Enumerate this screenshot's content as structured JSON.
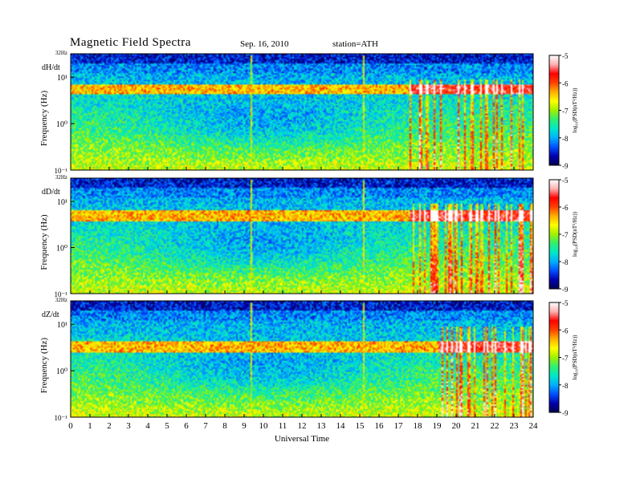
{
  "header": {
    "title": "Magnetic  Field  Spectra",
    "date": "Sep. 16, 2010",
    "station": "station=ATH"
  },
  "colors": {
    "colormap": [
      "#000050",
      "#0000b0",
      "#0050ff",
      "#00b0ff",
      "#00e8c8",
      "#30f070",
      "#a0f000",
      "#ffff00",
      "#ffb000",
      "#ff4000",
      "#ff0000",
      "#ffb0b0",
      "#ffffff"
    ]
  },
  "chart_data": [
    {
      "type": "heatmap",
      "panel_label": "dH/dt",
      "ylabel": "Frequency  (Hz)",
      "xlabel": "",
      "y_scale": "log",
      "ylim": [
        0.1,
        32
      ],
      "y_tick_labels": [
        "10¹",
        "10⁰",
        "10⁻¹"
      ],
      "y_top_label": "32Hz",
      "x_range": [
        0,
        24
      ],
      "colorbar": {
        "label": "log₁₀(PSD(nT²/Hz))",
        "range": [
          -9,
          -5
        ],
        "tick_labels": [
          "-5",
          "-6",
          "-7",
          "-8",
          "-9"
        ]
      },
      "features": {
        "bands_hz": [
          5.0,
          6.5
        ],
        "strong_activity_hours": [
          17.5,
          24
        ],
        "line_spike_hours": [
          9.3,
          15.2
        ]
      }
    },
    {
      "type": "heatmap",
      "panel_label": "dD/dt",
      "ylabel": "Frequency  (Hz)",
      "xlabel": "",
      "y_scale": "log",
      "ylim": [
        0.1,
        32
      ],
      "y_tick_labels": [
        "10¹",
        "10⁰",
        "10⁻¹"
      ],
      "y_top_label": "32Hz",
      "x_range": [
        0,
        24
      ],
      "colorbar": {
        "label": "log₁₀(PSD(nT²/Hz))",
        "range": [
          -9,
          -5
        ],
        "tick_labels": [
          "-5",
          "-6",
          "-7",
          "-8",
          "-9"
        ]
      },
      "features": {
        "bands_hz": [
          4.5,
          6.0
        ],
        "strong_activity_hours": [
          17.5,
          24
        ],
        "line_spike_hours": [
          9.3,
          15.2
        ]
      }
    },
    {
      "type": "heatmap",
      "panel_label": "dZ/dt",
      "ylabel": "Frequency  (Hz)",
      "xlabel": "Universal Time",
      "y_scale": "log",
      "ylim": [
        0.1,
        32
      ],
      "y_tick_labels": [
        "10¹",
        "10⁰",
        "10⁻¹"
      ],
      "y_top_label": "32Hz",
      "x_range": [
        0,
        24
      ],
      "x_tick_labels": [
        "0",
        "1",
        "2",
        "3",
        "4",
        "5",
        "6",
        "7",
        "8",
        "9",
        "10",
        "11",
        "12",
        "13",
        "14",
        "15",
        "16",
        "17",
        "18",
        "19",
        "20",
        "21",
        "22",
        "23",
        "24"
      ],
      "colorbar": {
        "label": "log₁₀(PSD(nT²/Hz))",
        "range": [
          -9,
          -5
        ],
        "tick_labels": [
          "-5",
          "-6",
          "-7",
          "-8",
          "-9"
        ]
      },
      "features": {
        "bands_hz": [
          3.0,
          3.8
        ],
        "strong_activity_hours": [
          19,
          24
        ],
        "line_spike_hours": [
          9.3,
          15.2
        ]
      }
    }
  ]
}
